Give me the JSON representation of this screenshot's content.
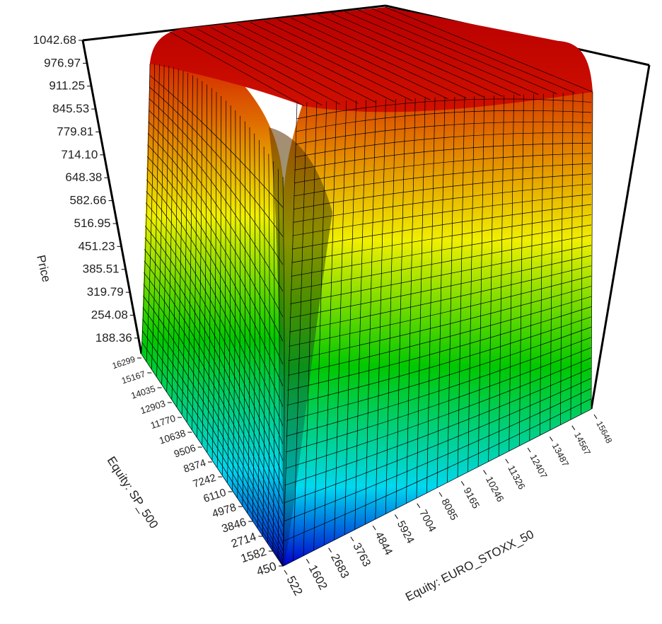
{
  "chart_data": {
    "type": "surface3d",
    "zlabel": "Price",
    "ylabel": "Equity: SP_500",
    "xlabel": "Equity: EURO_STOXX_50",
    "z_ticks": [
      "1042.68",
      "976.97",
      "911.25",
      "845.53",
      "779.81",
      "714.10",
      "648.38",
      "582.66",
      "516.95",
      "451.23",
      "385.51",
      "319.79",
      "254.08",
      "188.36"
    ],
    "y_ticks": [
      "16299",
      "15167",
      "14035",
      "12903",
      "11770",
      "10638",
      "9506",
      "8374",
      "7242",
      "6110",
      "4978",
      "3846",
      "2714",
      "1582",
      "450"
    ],
    "x_ticks": [
      "522",
      "1602",
      "2683",
      "3763",
      "4844",
      "5924",
      "7004",
      "8085",
      "9165",
      "10246",
      "11326",
      "12407",
      "13487",
      "14567",
      "15648"
    ],
    "zlim": [
      188.36,
      1042.68
    ],
    "xlim": [
      522,
      15648
    ],
    "ylim": [
      450,
      16299
    ],
    "colormap": [
      "#0000cc",
      "#00d8f0",
      "#00c800",
      "#f0f000",
      "#e07000",
      "#cc0000"
    ],
    "grid": true,
    "legend": "none"
  }
}
